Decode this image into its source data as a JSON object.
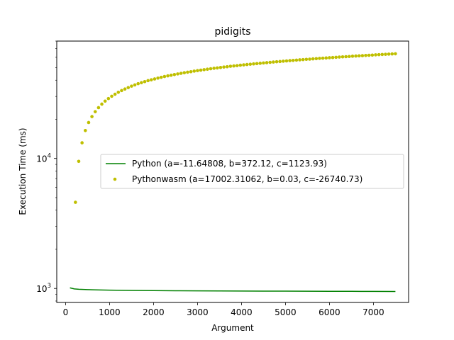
{
  "chart_data": {
    "type": "line",
    "title": "pidigits",
    "xlabel": "Argument",
    "ylabel": "Execution Time (ms)",
    "xlim": [
      -200,
      7800
    ],
    "ylim": [
      780,
      80000
    ],
    "yscale": "log",
    "grid": false,
    "legend_position": "center-right",
    "x_ticks": [
      0,
      1000,
      2000,
      3000,
      4000,
      5000,
      6000,
      7000
    ],
    "x_tick_labels": [
      "0",
      "1000",
      "2000",
      "3000",
      "4000",
      "5000",
      "6000",
      "7000"
    ],
    "y_ticks": [
      1000,
      10000
    ],
    "y_tick_labels": [
      {
        "base": "10",
        "exp": "3"
      },
      {
        "base": "10",
        "exp": "4"
      }
    ],
    "series": [
      {
        "name": "Python (a=-11.64808, b=372.12, c=1123.93)",
        "style": "line",
        "color": "#008000",
        "x": [
          100,
          200,
          300,
          500,
          700,
          1000,
          1500,
          2000,
          2500,
          3000,
          3500,
          4000,
          4500,
          5000,
          5500,
          6000,
          6500,
          7000,
          7500
        ],
        "y": [
          1010,
          992,
          985,
          979,
          975,
          970,
          965,
          962,
          960,
          958,
          957,
          955,
          954,
          953,
          952,
          951,
          950,
          949,
          948
        ]
      },
      {
        "name": "Pythonwasm (a=17002.31062, b=0.03, c=-26740.73)",
        "style": "points",
        "color": "#bfbf00",
        "x": [
          225,
          300,
          375,
          450,
          525,
          600,
          675,
          750,
          825,
          900,
          975,
          1050,
          1125,
          1200,
          1275,
          1350,
          1425,
          1500,
          1575,
          1650,
          1725,
          1800,
          1875,
          1950,
          2025,
          2100,
          2175,
          2250,
          2325,
          2400,
          2475,
          2550,
          2625,
          2700,
          2775,
          2850,
          2925,
          3000,
          3075,
          3150,
          3225,
          3300,
          3375,
          3450,
          3525,
          3600,
          3675,
          3750,
          3825,
          3900,
          3975,
          4050,
          4125,
          4200,
          4275,
          4350,
          4425,
          4500,
          4575,
          4650,
          4725,
          4800,
          4875,
          4950,
          5025,
          5100,
          5175,
          5250,
          5325,
          5400,
          5475,
          5550,
          5625,
          5700,
          5775,
          5850,
          5925,
          6000,
          6075,
          6150,
          6225,
          6300,
          6375,
          6450,
          6525,
          6600,
          6675,
          6750,
          6825,
          6900,
          6975,
          7050,
          7125,
          7200,
          7275,
          7350,
          7425,
          7500
        ],
        "y": [
          4600,
          9500,
          13200,
          16400,
          18900,
          21000,
          22900,
          24600,
          26200,
          27600,
          28900,
          30100,
          31200,
          32300,
          33300,
          34200,
          35100,
          36000,
          36800,
          37600,
          38300,
          39000,
          39700,
          40300,
          40900,
          41500,
          42100,
          42700,
          43200,
          43700,
          44200,
          44700,
          45200,
          45700,
          46100,
          46500,
          47000,
          47400,
          47800,
          48200,
          48600,
          49000,
          49400,
          49700,
          50100,
          50500,
          50800,
          51200,
          51500,
          51800,
          52200,
          52500,
          52800,
          53100,
          53400,
          53700,
          54000,
          54300,
          54600,
          54900,
          55200,
          55500,
          55700,
          56000,
          56300,
          56600,
          56800,
          57100,
          57400,
          57600,
          57900,
          58100,
          58400,
          58600,
          58900,
          59100,
          59300,
          59600,
          59800,
          60000,
          60300,
          60500,
          60700,
          60900,
          61200,
          61400,
          61600,
          61800,
          62000,
          62200,
          62400,
          62700,
          62900,
          63100,
          63300,
          63500,
          63700,
          63900
        ]
      }
    ]
  }
}
